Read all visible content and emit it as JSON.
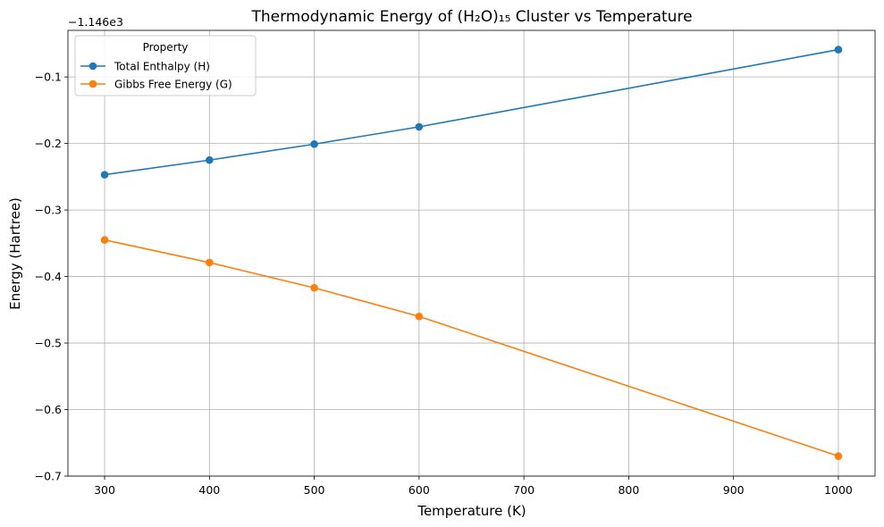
{
  "chart_data": {
    "type": "line",
    "title": "Thermodynamic Energy of (H₂O)₁₅ Cluster vs Temperature",
    "xlabel": "Temperature (K)",
    "ylabel": "Energy (Hartree)",
    "y_offset_label": "−1.146e3",
    "x": [
      300,
      400,
      500,
      600,
      1000
    ],
    "xlim": [
      265,
      1035
    ],
    "ylim": [
      -0.7,
      -0.03
    ],
    "x_ticks": [
      300,
      400,
      500,
      600,
      700,
      800,
      900,
      1000
    ],
    "x_tick_labels": [
      "300",
      "400",
      "500",
      "600",
      "700",
      "800",
      "900",
      "1000"
    ],
    "y_ticks": [
      -0.7,
      -0.6,
      -0.5,
      -0.4,
      -0.3,
      -0.2,
      -0.1
    ],
    "y_tick_labels": [
      "−0.7",
      "−0.6",
      "−0.5",
      "−0.4",
      "−0.3",
      "−0.2",
      "−0.1"
    ],
    "grid": true,
    "legend": {
      "title": "Property",
      "placement": "top-left"
    },
    "series": [
      {
        "name": "Total Enthalpy (H)",
        "color": "#1f77b4",
        "values": [
          -0.247,
          -0.225,
          -0.201,
          -0.175,
          -0.059
        ]
      },
      {
        "name": "Gibbs Free Energy (G)",
        "color": "#ff7f0e",
        "values": [
          -0.345,
          -0.379,
          -0.417,
          -0.46,
          -0.67
        ]
      }
    ]
  }
}
